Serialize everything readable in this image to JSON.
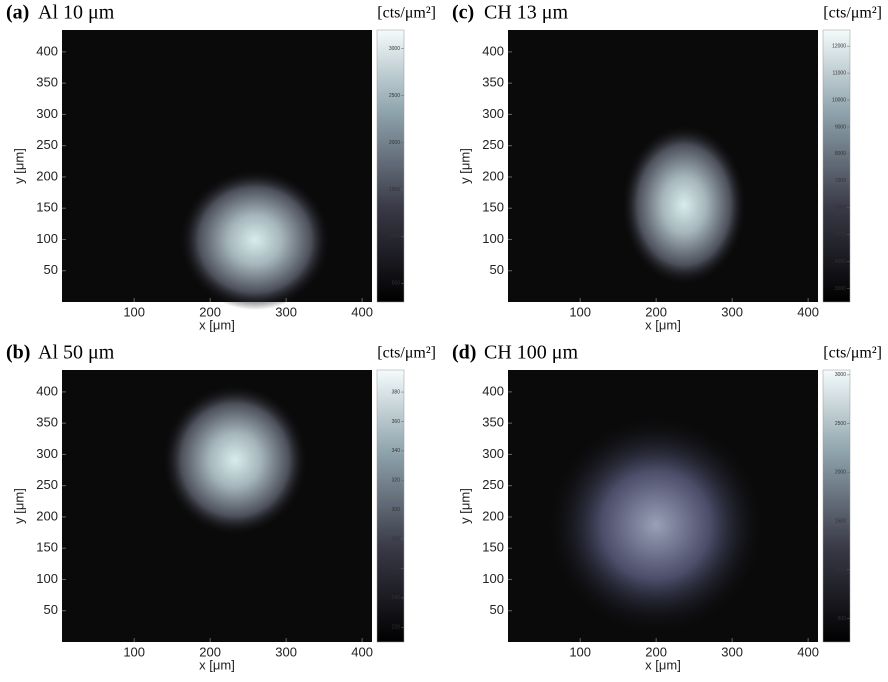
{
  "chart_data": [
    {
      "type": "heatmap",
      "label": "(a)",
      "title": "Al 10 μm",
      "unit": "[cts/μm²]",
      "xlabel": "x [μm]",
      "ylabel": "y [μm]",
      "xlim": [
        5,
        413
      ],
      "xticks": [
        100,
        200,
        300,
        400
      ],
      "ylim": [
        0,
        435
      ],
      "yticks": [
        50,
        100,
        150,
        200,
        250,
        300,
        350,
        400
      ],
      "zlim": [
        300,
        3200
      ],
      "zticks": [
        500,
        1000,
        1500,
        2000,
        2500,
        3000
      ]
    },
    {
      "type": "heatmap",
      "label": "(b)",
      "title": "Al 50 μm",
      "unit": "[cts/μm²]",
      "xlabel": "x [μm]",
      "ylabel": "y [μm]",
      "xlim": [
        5,
        413
      ],
      "xticks": [
        100,
        200,
        300,
        400
      ],
      "ylim": [
        0,
        435
      ],
      "yticks": [
        50,
        100,
        150,
        200,
        250,
        300,
        350,
        400
      ],
      "zlim": [
        210,
        395
      ],
      "zticks": [
        220,
        240,
        260,
        280,
        300,
        320,
        340,
        360,
        380
      ]
    },
    {
      "type": "heatmap",
      "label": "(c)",
      "title": "CH 13 μm",
      "unit": "[cts/μm²]",
      "xlabel": "x [μm]",
      "ylabel": "y [μm]",
      "xlim": [
        5,
        413
      ],
      "xticks": [
        100,
        200,
        300,
        400
      ],
      "ylim": [
        0,
        435
      ],
      "yticks": [
        50,
        100,
        150,
        200,
        250,
        300,
        350,
        400
      ],
      "zlim": [
        2500,
        12600
      ],
      "zticks": [
        3000,
        4000,
        5000,
        6000,
        7000,
        8000,
        9000,
        10000,
        11000,
        12000
      ]
    },
    {
      "type": "heatmap",
      "label": "(d)",
      "title": "CH 100 μm",
      "unit": "[cts/μm²]",
      "xlabel": "x [μm]",
      "ylabel": "y [μm]",
      "xlim": [
        5,
        413
      ],
      "xticks": [
        100,
        200,
        300,
        400
      ],
      "ylim": [
        0,
        435
      ],
      "yticks": [
        50,
        100,
        150,
        200,
        250,
        300,
        350,
        400
      ],
      "zlim": [
        260,
        3050
      ],
      "zticks": [
        500,
        1000,
        1500,
        2000,
        2500,
        3000
      ]
    }
  ]
}
